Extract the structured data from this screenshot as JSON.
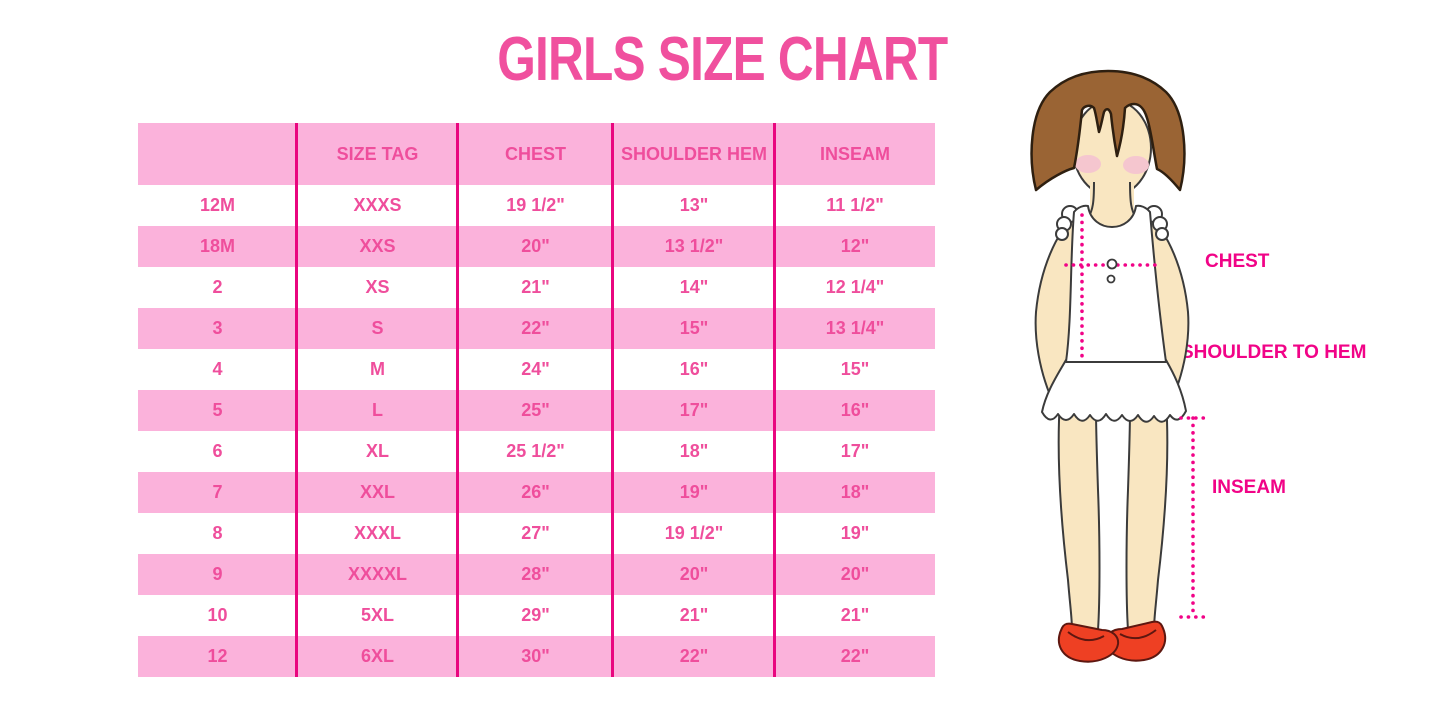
{
  "title": "GIRLS SIZE CHART",
  "colors": {
    "title_pink": "#F0509E",
    "band_pink": "#FBB2DB",
    "divider_magenta": "#E9067F",
    "table_text_pink": "#EF4E9C",
    "label_magenta": "#F10387",
    "dotted_magenta": "#F10387",
    "hair_brown": "#9A6434",
    "hair_outline": "#2E1F10",
    "skin": "#F9E6C1",
    "blush": "#F5C6CF",
    "shoe_red": "#EE4023",
    "shoe_outline": "#5E1710",
    "body_outline": "#3B3B3B"
  },
  "table": {
    "headers": [
      "",
      "SIZE TAG",
      "CHEST",
      "SHOULDER HEM",
      "INSEAM"
    ],
    "rows": [
      [
        "12M",
        "XXXS",
        "19 1/2\"",
        "13\"",
        "11 1/2\""
      ],
      [
        "18M",
        "XXS",
        "20\"",
        "13 1/2\"",
        "12\""
      ],
      [
        "2",
        "XS",
        "21\"",
        "14\"",
        "12 1/4\""
      ],
      [
        "3",
        "S",
        "22\"",
        "15\"",
        "13 1/4\""
      ],
      [
        "4",
        "M",
        "24\"",
        "16\"",
        "15\""
      ],
      [
        "5",
        "L",
        "25\"",
        "17\"",
        "16\""
      ],
      [
        "6",
        "XL",
        "25 1/2\"",
        "18\"",
        "17\""
      ],
      [
        "7",
        "XXL",
        "26\"",
        "19\"",
        "18\""
      ],
      [
        "8",
        "XXXL",
        "27\"",
        "19 1/2\"",
        "19\""
      ],
      [
        "9",
        "XXXXL",
        "28\"",
        "20\"",
        "20\""
      ],
      [
        "10",
        "5XL",
        "29\"",
        "21\"",
        "21\""
      ],
      [
        "12",
        "6XL",
        "30\"",
        "22\"",
        "22\""
      ]
    ]
  },
  "figure_labels": {
    "chest": "CHEST",
    "shoulder_to_hem": "SHOULDER TO HEM",
    "inseam": "INSEAM"
  }
}
